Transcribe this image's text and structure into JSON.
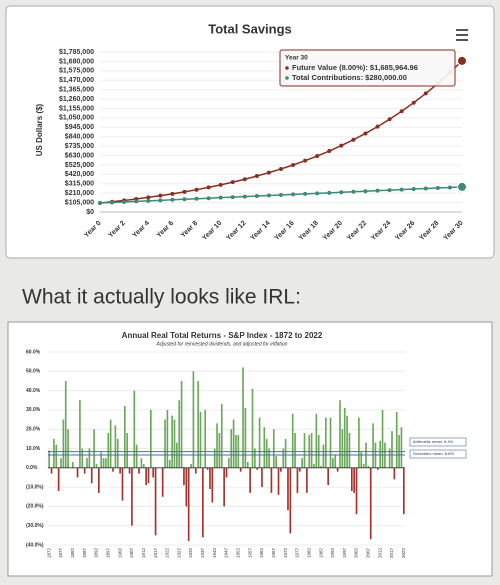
{
  "caption": "What it actually looks like IRL:",
  "chart_data": [
    {
      "type": "line",
      "title": "Total Savings",
      "y_label": "US Dollars ($)",
      "categories": [
        "Year 0",
        null,
        "Year 2",
        null,
        "Year 4",
        null,
        "Year 6",
        null,
        "Year 8",
        null,
        "Year 10",
        null,
        "Year 12",
        null,
        "Year 14",
        null,
        "Year 16",
        null,
        "Year 18",
        null,
        "Year 20",
        null,
        "Year 22",
        null,
        "Year 24",
        null,
        "Year 26",
        null,
        "Year 28",
        null,
        "Year 30"
      ],
      "series": [
        {
          "color": "#8b2e22",
          "values": [
            100000,
            114000,
            129120,
            145450,
            163086,
            182132,
            202703,
            224919,
            248913,
            274826,
            302812,
            333037,
            365680,
            400934,
            439009,
            480130,
            524540,
            572503,
            624303,
            680248,
            740668,
            805921,
            876395,
            952506,
            1034707,
            1123483,
            1219362,
            1322911,
            1434744,
            1555523,
            1685964.96
          ]
        },
        {
          "color": "#3f8a78",
          "values": [
            100000,
            106000,
            112000,
            118000,
            124000,
            130000,
            136000,
            142000,
            148000,
            154000,
            160000,
            166000,
            172000,
            178000,
            184000,
            190000,
            196000,
            202000,
            208000,
            214000,
            220000,
            226000,
            232000,
            238000,
            244000,
            250000,
            256000,
            262000,
            268000,
            274000,
            280000
          ]
        }
      ],
      "ylim": [
        0,
        1785000
      ],
      "yticks": [
        {
          "value": 0,
          "label": "$0"
        },
        {
          "value": 105000,
          "label": "$105,000"
        },
        {
          "value": 210000,
          "label": "$210,000"
        },
        {
          "value": 315000,
          "label": "$315,000"
        },
        {
          "value": 420000,
          "label": "$420,000"
        },
        {
          "value": 525000,
          "label": "$525,000"
        },
        {
          "value": 630000,
          "label": "$630,000"
        },
        {
          "value": 735000,
          "label": "$735,000"
        },
        {
          "value": 840000,
          "label": "$840,000"
        },
        {
          "value": 945000,
          "label": "$945,000"
        },
        {
          "value": 1050000,
          "label": "$1,050,000"
        },
        {
          "value": 1155000,
          "label": "$1,155,000"
        },
        {
          "value": 1260000,
          "label": "$1,260,000"
        },
        {
          "value": 1365000,
          "label": "$1,365,000"
        },
        {
          "value": 1470000,
          "label": "$1,470,000"
        },
        {
          "value": 1575000,
          "label": "$1,575,000"
        },
        {
          "value": 1680000,
          "label": "$1,680,000"
        },
        {
          "value": 1785000,
          "label": "$1,785,000"
        }
      ],
      "grid": true,
      "tooltip": {
        "title": "Year 30",
        "lines": [
          "Future Value (8.00%): $1,685,964.96",
          "Total Contributions: $280,000.00"
        ]
      }
    },
    {
      "type": "bar",
      "title": "Annual Real Total Returns - S&P Index - 1872 to 2022",
      "subtitle": "Adjusted for reinvested dividends, and adjusted for inflation",
      "categories": [
        "1872",
        null,
        null,
        null,
        null,
        "1877",
        null,
        null,
        null,
        null,
        "1882",
        null,
        null,
        null,
        null,
        "1887",
        null,
        null,
        null,
        null,
        "1892",
        null,
        null,
        null,
        null,
        "1897",
        null,
        null,
        null,
        null,
        "1902",
        null,
        null,
        null,
        null,
        "1907",
        null,
        null,
        null,
        null,
        "1912",
        null,
        null,
        null,
        null,
        "1917",
        null,
        null,
        null,
        null,
        "1922",
        null,
        null,
        null,
        null,
        "1927",
        null,
        null,
        null,
        null,
        "1932",
        null,
        null,
        null,
        null,
        "1937",
        null,
        null,
        null,
        null,
        "1942",
        null,
        null,
        null,
        null,
        "1947",
        null,
        null,
        null,
        null,
        "1952",
        null,
        null,
        null,
        null,
        "1957",
        null,
        null,
        null,
        null,
        "1962",
        null,
        null,
        null,
        null,
        "1967",
        null,
        null,
        null,
        null,
        "1972",
        null,
        null,
        null,
        null,
        "1977",
        null,
        null,
        null,
        null,
        "1982",
        null,
        null,
        null,
        null,
        "1987",
        null,
        null,
        null,
        null,
        "1992",
        null,
        null,
        null,
        null,
        "1997",
        null,
        null,
        null,
        null,
        "2002",
        null,
        null,
        null,
        null,
        "2007",
        null,
        null,
        null,
        null,
        "2012",
        null,
        null,
        null,
        null,
        "2017",
        null,
        null,
        null,
        null,
        "2022"
      ],
      "values": [
        9,
        -3,
        15,
        12,
        -12,
        5,
        25,
        45,
        20,
        0,
        3,
        0,
        -5,
        35,
        10,
        -3,
        5,
        10,
        -8,
        20,
        2,
        -13,
        8,
        5,
        5,
        18,
        25,
        -2,
        22,
        15,
        -3,
        -17,
        32,
        18,
        -3,
        -30,
        40,
        12,
        -3,
        5,
        2,
        -9,
        -8,
        30,
        -5,
        -35,
        0,
        0,
        -15,
        25,
        30,
        4,
        27,
        25,
        13,
        35,
        45,
        -9,
        -20,
        -38,
        2,
        50,
        -3,
        45,
        29,
        -36,
        30,
        -1,
        -11,
        -18,
        10,
        23,
        18,
        33,
        -20,
        -5,
        5,
        20,
        25,
        17,
        17,
        -2,
        52,
        31,
        3,
        -13,
        41,
        10,
        -1,
        26,
        -10,
        21,
        15,
        10,
        -13,
        20,
        6,
        -14,
        -2,
        10,
        15,
        -22,
        -34,
        28,
        18,
        -13,
        -2,
        5,
        18,
        -13,
        17,
        18,
        2,
        28,
        17,
        1,
        12,
        26,
        -9,
        26,
        5,
        7,
        -2,
        35,
        20,
        31,
        27,
        18,
        -12,
        -13,
        -24,
        26,
        8,
        2,
        13,
        1,
        -37,
        23,
        13,
        -1,
        14,
        30,
        13,
        0,
        10,
        19,
        -6,
        29,
        17,
        21,
        -24
      ],
      "positive_color": "#6aa85a",
      "negative_color": "#a8302c",
      "ylim": [
        -40,
        60
      ],
      "yticks": [
        {
          "value": -40,
          "label": "(40.0%)"
        },
        {
          "value": -30,
          "label": "(30.0%)"
        },
        {
          "value": -20,
          "label": "(20.0%)"
        },
        {
          "value": -10,
          "label": "(10.0%)"
        },
        {
          "value": 0,
          "label": "0.0%"
        },
        {
          "value": 10,
          "label": "10.0%"
        },
        {
          "value": 20,
          "label": "20.0%"
        },
        {
          "value": 30,
          "label": "30.0%"
        },
        {
          "value": 40,
          "label": "40.0%"
        },
        {
          "value": 50,
          "label": "50.0%"
        },
        {
          "value": 60,
          "label": "60.0%"
        }
      ],
      "grid": true,
      "reference_lines": [
        {
          "label": "Arithmetic mean: 8.4%",
          "value": 8.4,
          "color": "#4a6fa5"
        },
        {
          "label": "Geometric mean: 6.6%",
          "value": 6.6,
          "color": "#4a6fa5"
        }
      ]
    }
  ]
}
